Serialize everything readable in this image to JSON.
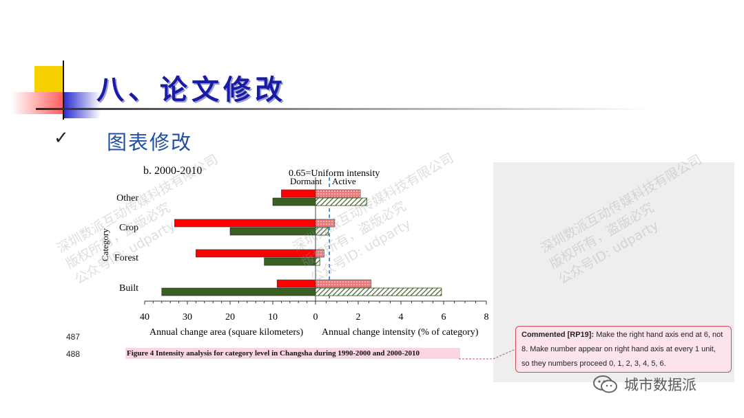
{
  "slide": {
    "title": "八、论文修改",
    "bullet": "图表修改",
    "check_glyph": "✓"
  },
  "figure": {
    "panel_label": "b. 2000-2010",
    "uniform_label": "0.65=Uniform intensity",
    "dormant_label": "Dormant",
    "active_label": "Active",
    "ylabel": "Category",
    "left_xlabel": "Annual change area (square kilometers)",
    "right_xlabel": "Annual change intensity (% of category)",
    "caption": "Figure 4    Intensity analysis for category level in Changsha during 1990-2000 and 2000-2010"
  },
  "line_numbers": [
    "487",
    "488"
  ],
  "comment": {
    "author": "Commented [RP19]:",
    "text": "Make the right hand axis end at 6, not 8. Make number appear on right hand axis at every 1 unit, so they numbers proceed 0, 1, 2, 3, 4, 5, 6."
  },
  "watermark": {
    "line1": "深圳数派互动传媒科技有限公司",
    "line2": "版权所有，盗版必究",
    "line3": "公众号ID: udparty",
    "brand": "城市数据派"
  },
  "chart_data": {
    "type": "bar",
    "orientation": "horizontal",
    "categories": [
      "Other",
      "Crop",
      "Forest",
      "Built"
    ],
    "left_axis": {
      "ticks": [
        40,
        30,
        20,
        10,
        0
      ],
      "range": [
        40,
        0
      ]
    },
    "right_axis": {
      "ticks": [
        0,
        2,
        4,
        6,
        8
      ],
      "range": [
        0,
        8
      ]
    },
    "uniform_intensity": 0.65,
    "series": [
      {
        "side": "area",
        "color": "#ff0000",
        "values": [
          8,
          33,
          28,
          9
        ]
      },
      {
        "side": "area",
        "color": "#3a5f22",
        "values": [
          10,
          20,
          12,
          36
        ]
      },
      {
        "side": "intensity",
        "color": "#f08080",
        "values": [
          2.1,
          0.9,
          0.4,
          2.6
        ]
      },
      {
        "side": "intensity",
        "color": "#3a5f22",
        "values": [
          2.4,
          0.6,
          0.2,
          5.9
        ]
      }
    ]
  }
}
